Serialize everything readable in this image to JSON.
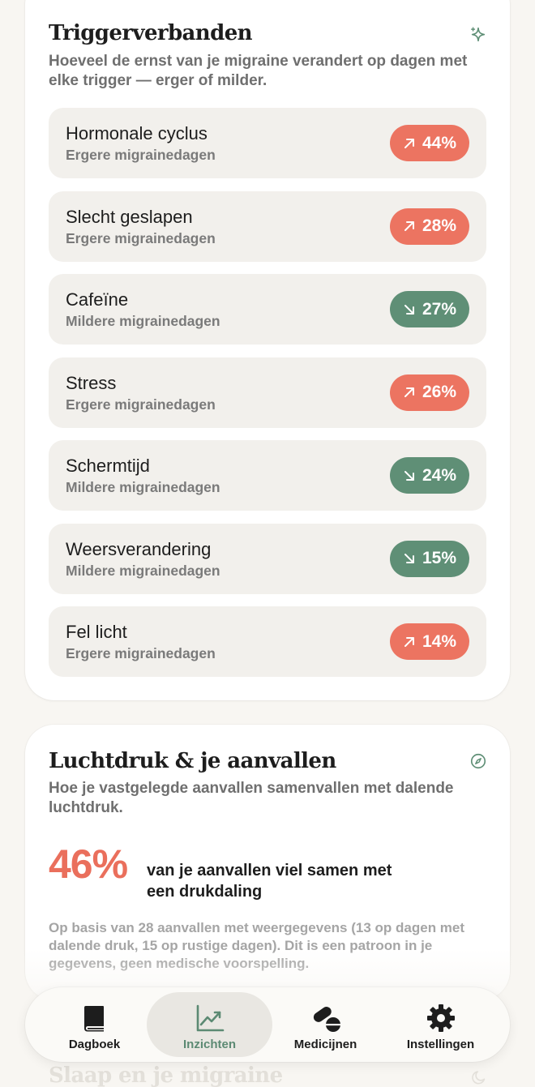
{
  "triggers_card": {
    "title": "Triggerverbanden",
    "subtitle": "Hoeveel de ernst van je migraine verandert op dagen met elke trigger — erger of milder.",
    "icon": "sparkle-icon",
    "items": [
      {
        "name": "Hormonale cyclus",
        "effect": "Ergere migrainedagen",
        "direction": "up",
        "value": "44%"
      },
      {
        "name": "Slecht geslapen",
        "effect": "Ergere migrainedagen",
        "direction": "up",
        "value": "28%"
      },
      {
        "name": "Cafeïne",
        "effect": "Mildere migrainedagen",
        "direction": "down",
        "value": "27%"
      },
      {
        "name": "Stress",
        "effect": "Ergere migrainedagen",
        "direction": "up",
        "value": "26%"
      },
      {
        "name": "Schermtijd",
        "effect": "Mildere migrainedagen",
        "direction": "down",
        "value": "24%"
      },
      {
        "name": "Weersverandering",
        "effect": "Mildere migrainedagen",
        "direction": "down",
        "value": "15%"
      },
      {
        "name": "Fel licht",
        "effect": "Ergere migrainedagen",
        "direction": "up",
        "value": "14%"
      }
    ]
  },
  "pressure_card": {
    "title": "Luchtdruk & je aanvallen",
    "subtitle": "Hoe je vastgelegde aanvallen samenvallen met dalende luchtdruk.",
    "icon": "compass-icon",
    "percentage": "46%",
    "percentage_text": "van je aanvallen viel samen met een drukdaling",
    "note": "Op basis van 28 aanvallen met weergegevens (13 op dagen met dalende druk, 15 op rustige dagen). Dit is een patroon in je gegevens, geen medische voorspelling."
  },
  "next_card": {
    "title": "Slaap en je migraine",
    "icon": "moon-icon"
  },
  "tabbar": {
    "tabs": [
      {
        "label": "Dagboek",
        "icon": "book-icon",
        "active": false
      },
      {
        "label": "Inzichten",
        "icon": "chart-icon",
        "active": true
      },
      {
        "label": "Medicijnen",
        "icon": "pills-icon",
        "active": false
      },
      {
        "label": "Instellingen",
        "icon": "gear-icon",
        "active": false
      }
    ]
  },
  "colors": {
    "worse": "#ec7461",
    "milder": "#5f8f76",
    "accent_green": "#5c8a73",
    "highlight_red": "#ea6f5c",
    "background": "#f8f6f2"
  }
}
